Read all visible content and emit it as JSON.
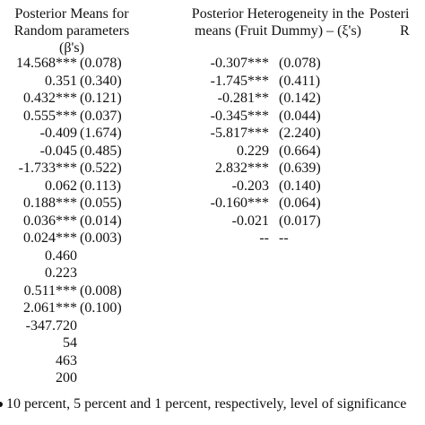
{
  "headers": {
    "col1": [
      "Posterior Means for",
      "Random parameters",
      "(β's)"
    ],
    "col2": [
      "Posterior Heterogeneity in the",
      "means (Fruit Dummy) – (ξ's)"
    ],
    "col3": [
      "Posteri",
      "R"
    ]
  },
  "rows_col1": [
    {
      "est": "14.568***",
      "se": "(0.078)"
    },
    {
      "est": "0.351",
      "se": "(0.340)"
    },
    {
      "est": "0.432***",
      "se": "(0.121)"
    },
    {
      "est": "0.555***",
      "se": "(0.037)"
    },
    {
      "est": "-0.409",
      "se": "(1.674)"
    },
    {
      "est": "-0.045",
      "se": "(0.485)"
    },
    {
      "est": "-1.733***",
      "se": "(0.522)"
    },
    {
      "est": "0.062",
      "se": "(0.113)"
    },
    {
      "est": "0.188***",
      "se": "(0.055)"
    },
    {
      "est": "0.036***",
      "se": "(0.014)"
    },
    {
      "est": "0.024***",
      "se": "(0.003)"
    },
    {
      "est": "0.460",
      "se": ""
    },
    {
      "est": "0.223",
      "se": ""
    },
    {
      "est": "0.511***",
      "se": "(0.008)"
    },
    {
      "est": "2.061***",
      "se": "(0.100)"
    },
    {
      "est": "-347.720",
      "se": ""
    },
    {
      "est": "54",
      "se": ""
    },
    {
      "est": "463",
      "se": ""
    },
    {
      "est": "200",
      "se": ""
    }
  ],
  "rows_col2": [
    {
      "est": "-0.307***",
      "se": "(0.078)"
    },
    {
      "est": "-1.745***",
      "se": "(0.411)"
    },
    {
      "est": "-0.281**",
      "se": "(0.142)"
    },
    {
      "est": "-0.345***",
      "se": "(0.044)"
    },
    {
      "est": "-5.817***",
      "se": "(2.240)"
    },
    {
      "est": "0.229",
      "se": "(0.664)"
    },
    {
      "est": "2.832***",
      "se": "(0.639)"
    },
    {
      "est": "-0.203",
      "se": "(0.140)"
    },
    {
      "est": "-0.160***",
      "se": "(0.064)"
    },
    {
      "est": "-0.021",
      "se": "(0.017)"
    },
    {
      "est": "--",
      "se": "--"
    }
  ],
  "footnote": "10 percent, 5 percent and 1 percent, respectively, level of significance"
}
